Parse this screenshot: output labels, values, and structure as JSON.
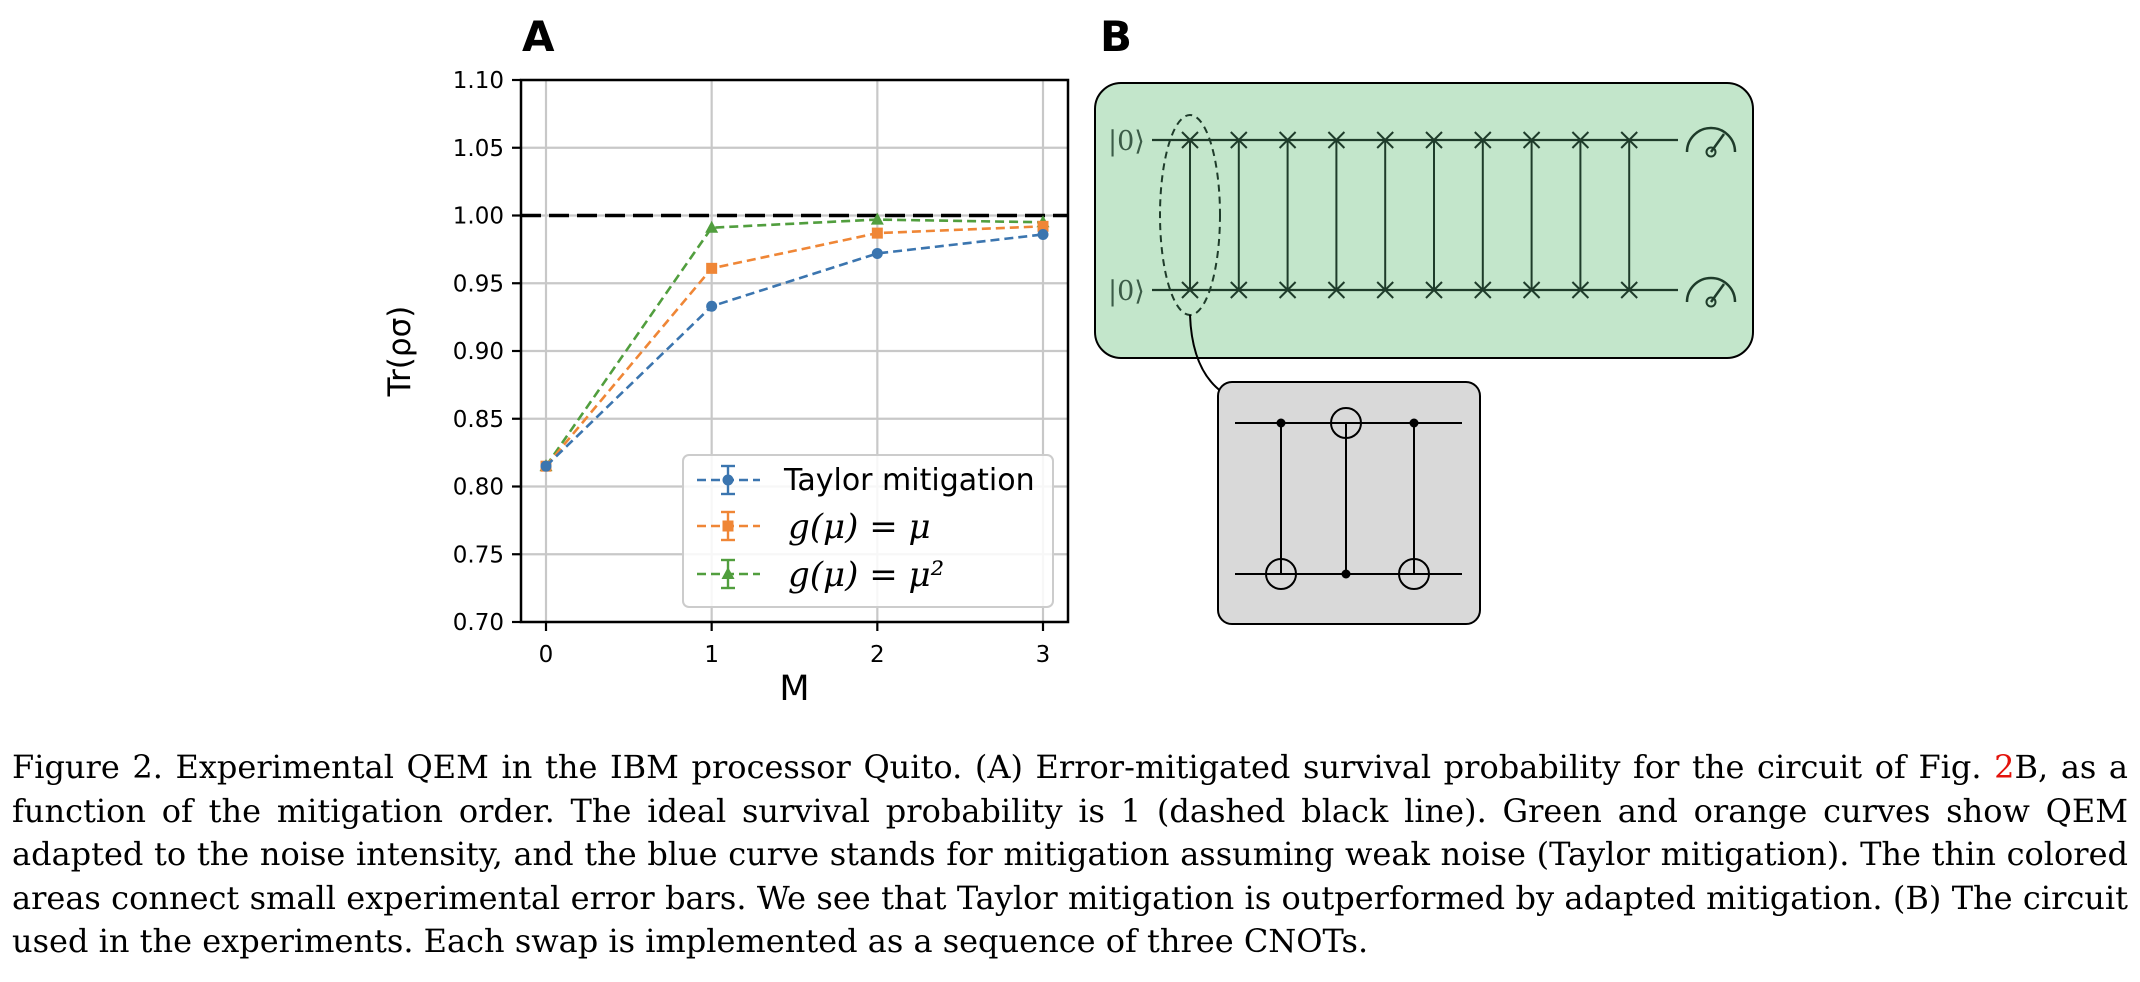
{
  "figure": {
    "panel_a_label": "A",
    "panel_b_label": "B"
  },
  "chart_data": {
    "type": "line",
    "xlabel": "M",
    "ylabel": "Tr(ρσ)",
    "x": [
      0,
      1,
      2,
      3
    ],
    "xticks": [
      "0",
      "1",
      "2",
      "3"
    ],
    "ylim": [
      0.7,
      1.1
    ],
    "yticks": [
      "0.70",
      "0.75",
      "0.80",
      "0.85",
      "0.90",
      "0.95",
      "1.00",
      "1.05",
      "1.10"
    ],
    "grid": true,
    "reference_line": {
      "y": 1.0,
      "style": "dashed",
      "color": "#000000"
    },
    "legend_position": "lower-right",
    "series": [
      {
        "name": "Taylor mitigation",
        "legend_math": false,
        "color": "#3b75af",
        "marker": "circle",
        "values": [
          0.815,
          0.933,
          0.972,
          0.986
        ]
      },
      {
        "name": "g(μ) = μ",
        "legend_math": true,
        "color": "#ef8636",
        "marker": "square",
        "values": [
          0.815,
          0.961,
          0.987,
          0.992
        ]
      },
      {
        "name": "g(μ) = μ²",
        "legend_math": true,
        "color": "#519e3e",
        "marker": "triangle",
        "values": [
          0.815,
          0.991,
          0.997,
          0.995
        ]
      }
    ]
  },
  "circuit": {
    "qubit_top_label": "|0⟩",
    "qubit_bottom_label": "|0⟩",
    "swap_count": 10,
    "main_background": "#c3e6cb",
    "zoom_background": "#d9d9d9"
  },
  "caption": {
    "part1": "Figure 2. Experimental QEM in the IBM processor Quito. (A) Error-mitigated survival probability for the circuit of Fig. ",
    "ref": "2",
    "part2": "B, as a function of the mitigation order. The ideal survival probability is 1 (dashed black line). Green and orange curves show QEM adapted to the noise intensity, and the blue curve stands for mitigation assuming weak noise (Taylor mitigation). The thin colored areas connect small experimental error bars. We see that Taylor mitigation is outperformed by adapted mitigation. (B) The circuit used in the experiments. Each swap is implemented as a sequence of three CNOTs."
  }
}
